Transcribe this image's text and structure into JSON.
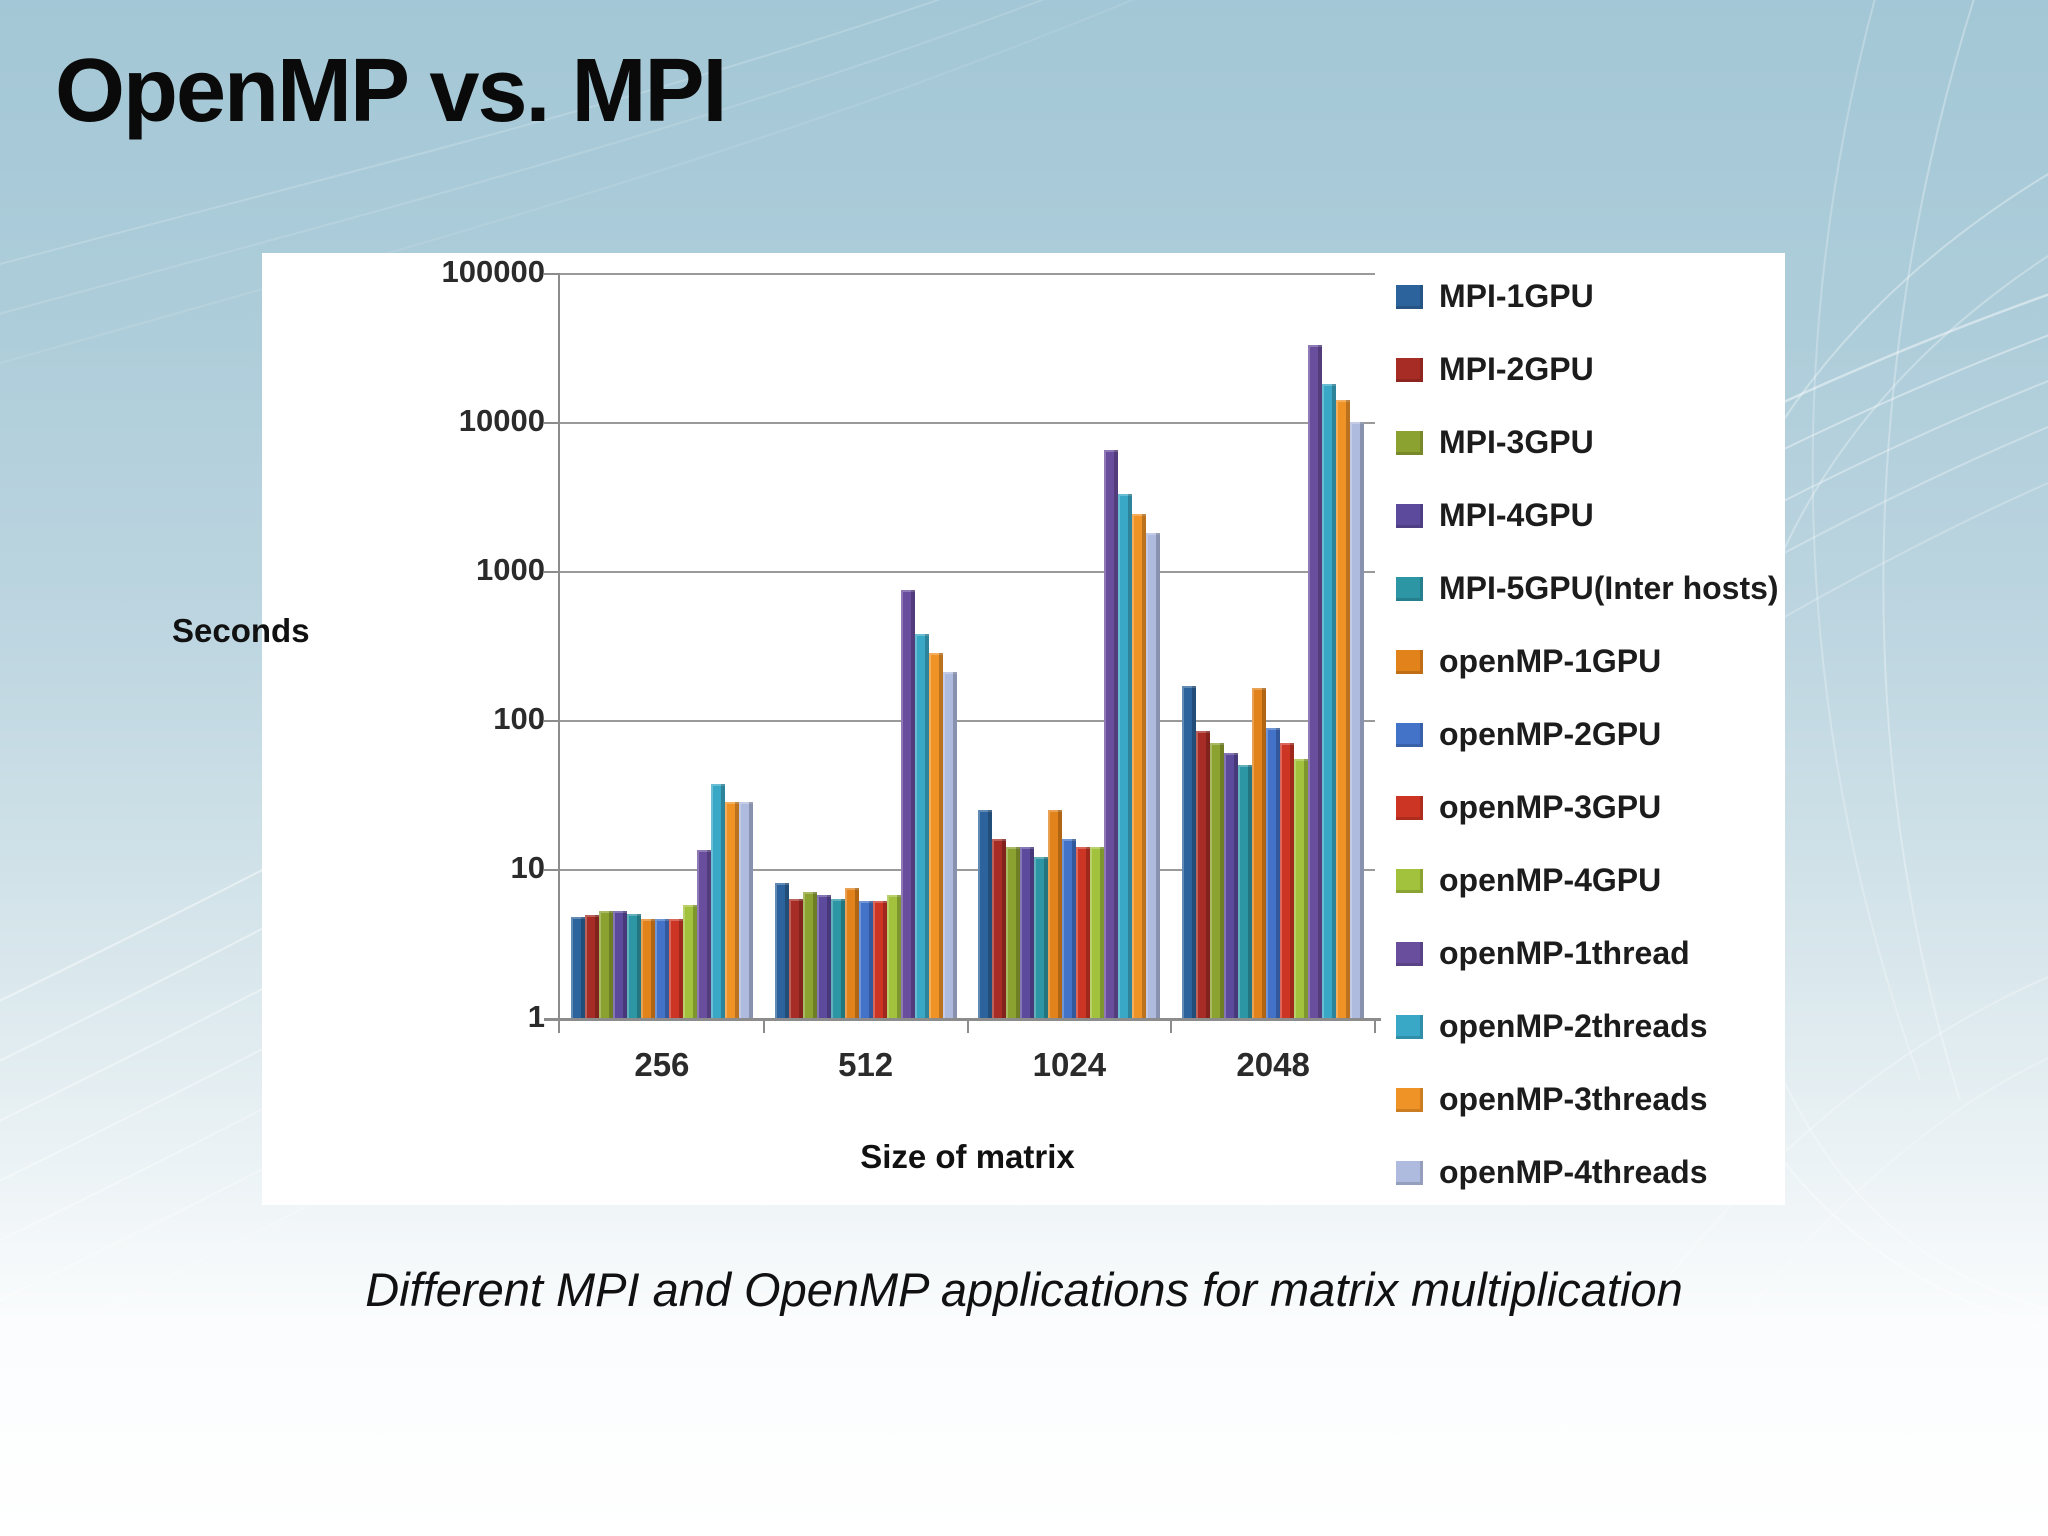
{
  "slide": {
    "title": "OpenMP vs. MPI",
    "caption": "Different MPI and OpenMP applications for matrix multiplication"
  },
  "chart_data": {
    "type": "bar",
    "title": "",
    "ylabel": "Seconds",
    "xlabel": "Size of matrix",
    "y_scale": "log",
    "ylim": [
      1,
      100000
    ],
    "y_ticks": [
      100000,
      10000,
      1000,
      100,
      10,
      1
    ],
    "grid": true,
    "legend_position": "right",
    "categories": [
      "256",
      "512",
      "1024",
      "2048"
    ],
    "series": [
      {
        "name": "MPI-1GPU",
        "color": "#2d639c",
        "values": [
          4.8,
          8,
          25,
          170
        ]
      },
      {
        "name": "MPI-2GPU",
        "color": "#a72c25",
        "values": [
          4.9,
          6.3,
          16,
          85
        ]
      },
      {
        "name": "MPI-3GPU",
        "color": "#8ca230",
        "values": [
          5.2,
          7,
          14,
          70
        ]
      },
      {
        "name": "MPI-4GPU",
        "color": "#5c4a9c",
        "values": [
          5.2,
          6.7,
          14,
          60
        ]
      },
      {
        "name": "MPI-5GPU(Inter hosts)",
        "color": "#2d96a5",
        "values": [
          5.0,
          6.3,
          12,
          50
        ]
      },
      {
        "name": "openMP-1GPU",
        "color": "#e2821a",
        "values": [
          4.6,
          7.5,
          25,
          165
        ]
      },
      {
        "name": "openMP-2GPU",
        "color": "#4273c8",
        "values": [
          4.6,
          6.1,
          16,
          88
        ]
      },
      {
        "name": "openMP-3GPU",
        "color": "#cc3424",
        "values": [
          4.6,
          6.1,
          14,
          70
        ]
      },
      {
        "name": "openMP-4GPU",
        "color": "#a2c13c",
        "values": [
          5.7,
          6.7,
          14,
          55
        ]
      },
      {
        "name": "openMP-1thread",
        "color": "#6a4e9e",
        "values": [
          13.5,
          750,
          6500,
          33000
        ]
      },
      {
        "name": "openMP-2threads",
        "color": "#39a8c6",
        "values": [
          37,
          380,
          3300,
          18000
        ]
      },
      {
        "name": "openMP-3threads",
        "color": "#f09327",
        "values": [
          28,
          280,
          2400,
          14000
        ]
      },
      {
        "name": "openMP-4threads",
        "color": "#afbadf",
        "values": [
          28,
          210,
          1800,
          10000
        ]
      }
    ]
  }
}
